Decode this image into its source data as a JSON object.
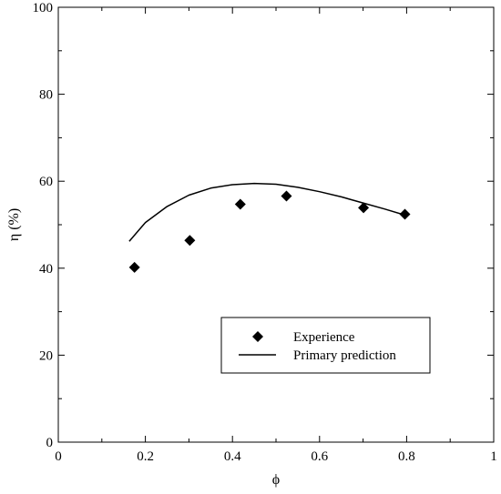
{
  "chart_data": {
    "type": "scatter",
    "xlabel": "ϕ",
    "ylabel": "η (%)",
    "xlim": [
      0,
      1
    ],
    "ylim": [
      0,
      100
    ],
    "x_ticks": [
      0,
      0.2,
      0.4,
      0.6,
      0.8,
      1
    ],
    "x_tick_labels": [
      "0",
      "0.2",
      "0.4",
      "0.6",
      "0.8",
      "1"
    ],
    "y_ticks": [
      0,
      20,
      40,
      60,
      80,
      100
    ],
    "y_tick_labels": [
      "0",
      "20",
      "40",
      "60",
      "80",
      "100"
    ],
    "grid": false,
    "legend_position": "bottom-right",
    "series": [
      {
        "name": "Experience",
        "type": "scatter",
        "marker": "diamond",
        "color": "#000000",
        "x": [
          0.175,
          0.302,
          0.418,
          0.524,
          0.701,
          0.796
        ],
        "y": [
          40.2,
          46.4,
          54.7,
          56.6,
          53.9,
          52.4
        ]
      },
      {
        "name": "Primary prediction",
        "type": "line",
        "color": "#000000",
        "x": [
          0.163,
          0.2,
          0.25,
          0.3,
          0.35,
          0.4,
          0.45,
          0.5,
          0.55,
          0.6,
          0.65,
          0.7,
          0.75,
          0.8
        ],
        "y": [
          46.2,
          50.5,
          54.2,
          56.8,
          58.4,
          59.2,
          59.5,
          59.3,
          58.6,
          57.6,
          56.4,
          55.0,
          53.6,
          52.1
        ]
      }
    ]
  }
}
